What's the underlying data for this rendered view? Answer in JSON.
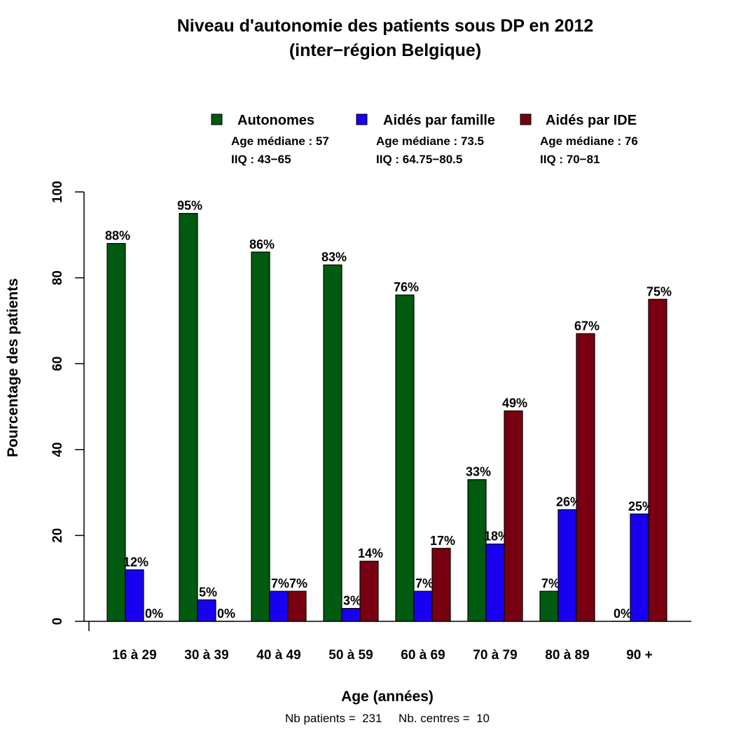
{
  "chart_data": {
    "type": "bar",
    "title": [
      "Niveau d'autonomie des patients sous DP en 2012",
      "(inter−région Belgique)"
    ],
    "xlabel": "Age (années)",
    "ylabel": "Pourcentage des patients",
    "ylim": [
      0,
      100
    ],
    "yticks": [
      "0",
      "20",
      "40",
      "60",
      "80",
      "100"
    ],
    "categories": [
      "16 à 29",
      "30 à 39",
      "40 à 49",
      "50 à 59",
      "60 à 69",
      "70 à 79",
      "80 à 89",
      "90 +"
    ],
    "series": [
      {
        "name": "Autonomes",
        "color": "#005a0f",
        "values": [
          88,
          95,
          86,
          83,
          76,
          33,
          7,
          0
        ],
        "info": [
          "Age médiane : 57",
          "IIQ : 43−65"
        ]
      },
      {
        "name": "Aidés par famille",
        "color": "#1a00f0",
        "values": [
          12,
          5,
          7,
          3,
          7,
          18,
          26,
          25
        ],
        "info": [
          "Age médiane : 73.5",
          "IIQ : 64.75−80.5"
        ]
      },
      {
        "name": "Aidés par IDE",
        "color": "#780010",
        "values": [
          0,
          0,
          7,
          14,
          17,
          49,
          67,
          75
        ],
        "info": [
          "Age médiane : 76",
          "IIQ : 70−81"
        ]
      }
    ],
    "legend_position": "top",
    "footer": "Nb patients =  231     Nb. centres =  10"
  }
}
